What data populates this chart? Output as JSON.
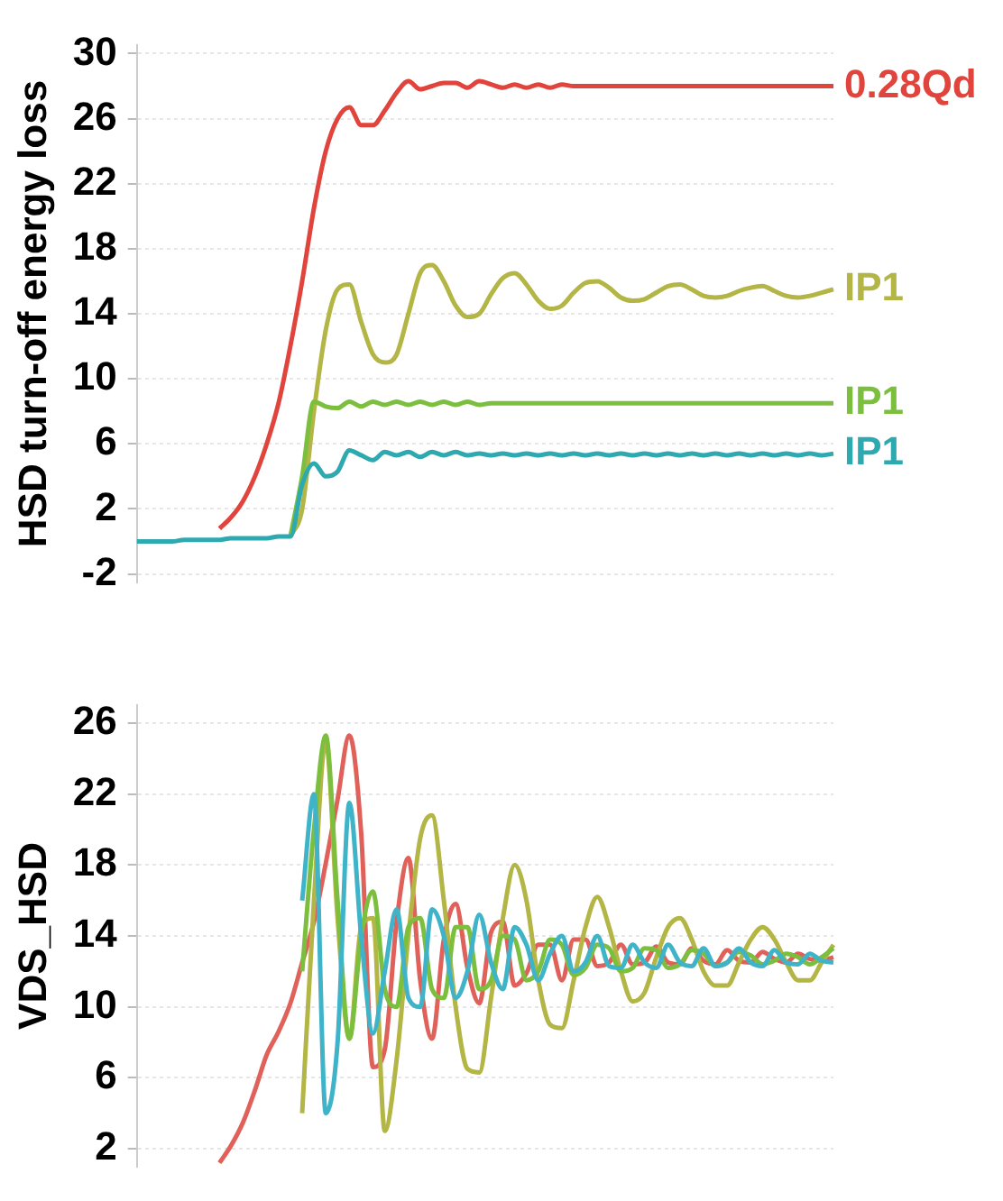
{
  "chart_data": [
    {
      "type": "line",
      "ylabel": "HSD turn-off energy loss",
      "categories": [
        null,
        null,
        null,
        null,
        null,
        null,
        null,
        null,
        null,
        null,
        null,
        null,
        null,
        null,
        null,
        null,
        null,
        null,
        null,
        null,
        null,
        null,
        null,
        null,
        null,
        null,
        null,
        null,
        null,
        null,
        null,
        null,
        null,
        null,
        null,
        null,
        null,
        null,
        null,
        null,
        null,
        null,
        null,
        null,
        null,
        null,
        null,
        null,
        null,
        null,
        null,
        null,
        null,
        null,
        null,
        null,
        null,
        null,
        null,
        null
      ],
      "ylim": [
        -2.5,
        30.5
      ],
      "yticks": [
        -2,
        2,
        6,
        10,
        14,
        18,
        22,
        26,
        30
      ],
      "grid": "y",
      "tick_labels": "y",
      "marker": "none",
      "series": [
        {
          "name": "0.28Qd",
          "color": "#e0443c",
          "values": [
            null,
            null,
            null,
            null,
            null,
            null,
            null,
            0.8,
            1.5,
            2.5,
            4,
            6,
            8.5,
            12,
            16,
            20.5,
            24,
            26,
            26.7,
            25.6,
            25.6,
            26.5,
            27.6,
            28.3,
            27.8,
            28,
            28.2,
            28.2,
            27.9,
            28.3,
            28.1,
            27.9,
            28.1,
            27.9,
            28.1,
            27.9,
            28.1,
            28,
            28,
            28,
            28,
            28,
            28,
            28,
            28,
            28,
            28,
            28,
            28,
            28,
            28,
            28,
            28,
            28,
            28,
            28,
            28,
            28,
            28,
            28
          ]
        },
        {
          "name": "IP1",
          "color": "#b3b545",
          "values": [
            null,
            null,
            null,
            null,
            null,
            null,
            null,
            null,
            null,
            null,
            null,
            null,
            null,
            0.3,
            2,
            8,
            13,
            15.5,
            15.8,
            13.5,
            11.5,
            11,
            11.5,
            14,
            16.5,
            17,
            16,
            14.5,
            13.8,
            14,
            15.2,
            16.2,
            16.5,
            15.8,
            14.8,
            14.3,
            14.5,
            15.3,
            15.9,
            16,
            15.6,
            15,
            14.8,
            14.9,
            15.3,
            15.7,
            15.8,
            15.5,
            15.1,
            15,
            15.1,
            15.4,
            15.6,
            15.7,
            15.4,
            15.1,
            15,
            15.1,
            15.3,
            15.5
          ]
        },
        {
          "name": "IP1",
          "color": "#7cbf3e",
          "values": [
            null,
            null,
            null,
            null,
            null,
            null,
            null,
            null,
            null,
            null,
            null,
            null,
            null,
            0.3,
            4,
            8.6,
            8.3,
            8.2,
            8.6,
            8.3,
            8.6,
            8.4,
            8.6,
            8.4,
            8.6,
            8.4,
            8.6,
            8.4,
            8.6,
            8.4,
            8.5,
            8.5,
            8.5,
            8.5,
            8.5,
            8.5,
            8.5,
            8.5,
            8.5,
            8.5,
            8.5,
            8.5,
            8.5,
            8.5,
            8.5,
            8.5,
            8.5,
            8.5,
            8.5,
            8.5,
            8.5,
            8.5,
            8.5,
            8.5,
            8.5,
            8.5,
            8.5,
            8.5,
            8.5,
            8.5
          ]
        },
        {
          "name": "IP1",
          "color": "#2fa9b0",
          "values": [
            0,
            0,
            0,
            0,
            0.1,
            0.1,
            0.1,
            0.1,
            0.2,
            0.2,
            0.2,
            0.2,
            0.3,
            0.3,
            3.5,
            4.8,
            4,
            4.3,
            5.6,
            5.3,
            5,
            5.5,
            5.3,
            5.5,
            5.2,
            5.5,
            5.3,
            5.5,
            5.3,
            5.4,
            5.3,
            5.4,
            5.3,
            5.4,
            5.3,
            5.4,
            5.3,
            5.4,
            5.3,
            5.4,
            5.3,
            5.4,
            5.3,
            5.4,
            5.3,
            5.4,
            5.3,
            5.4,
            5.3,
            5.4,
            5.3,
            5.4,
            5.3,
            5.4,
            5.3,
            5.4,
            5.3,
            5.4,
            5.3,
            5.4
          ]
        }
      ]
    },
    {
      "type": "line",
      "ylabel": "VDS_HSD",
      "categories": [
        null,
        null,
        null,
        null,
        null,
        null,
        null,
        null,
        null,
        null,
        null,
        null,
        null,
        null,
        null,
        null,
        null,
        null,
        null,
        null,
        null,
        null,
        null,
        null,
        null,
        null,
        null,
        null,
        null,
        null,
        null,
        null,
        null,
        null,
        null,
        null,
        null,
        null,
        null,
        null,
        null,
        null,
        null,
        null,
        null,
        null,
        null,
        null,
        null,
        null,
        null,
        null,
        null,
        null,
        null,
        null,
        null,
        null,
        null,
        null
      ],
      "ylim": [
        1,
        27
      ],
      "yticks": [
        2,
        6,
        10,
        14,
        18,
        22,
        26
      ],
      "grid": "y",
      "tick_labels": "y",
      "marker": "none",
      "series": [
        {
          "color": "#e0605a",
          "values": [
            null,
            null,
            null,
            null,
            null,
            null,
            null,
            1.2,
            2.2,
            3.5,
            5.3,
            7.3,
            8.6,
            10.2,
            12.5,
            14.8,
            18.1,
            21.7,
            25.3,
            19.8,
            6.6,
            7.6,
            14.8,
            18.4,
            11.5,
            8.2,
            13.8,
            15.8,
            12.2,
            10.2,
            14.2,
            14.8,
            11.2,
            11.9,
            13.5,
            13.5,
            11.5,
            13.8,
            13.8,
            12.3,
            12.5,
            13.5,
            12.4,
            12.5,
            13.4,
            12.5,
            12.4,
            13.3,
            12.6,
            12.4,
            13.2,
            12.6,
            12.5,
            13.1,
            12.7,
            12.5,
            13,
            12.7,
            12.6,
            12.8
          ]
        },
        {
          "color": "#b3b545",
          "values": [
            null,
            null,
            null,
            null,
            null,
            null,
            null,
            null,
            null,
            null,
            null,
            null,
            null,
            null,
            4,
            16,
            25,
            15,
            8.2,
            14.5,
            15,
            3,
            7,
            14,
            19.5,
            20.8,
            16,
            10,
            6.5,
            6.3,
            10.5,
            15,
            18,
            16,
            11.5,
            9,
            8.8,
            11.5,
            14.5,
            16.2,
            14.5,
            12,
            10.3,
            10.8,
            12.8,
            14.5,
            15,
            13.8,
            12,
            11.2,
            11.2,
            12.5,
            13.8,
            14.5,
            13.8,
            12.5,
            11.5,
            11.5,
            12.5,
            13.5
          ]
        },
        {
          "color": "#7cbf3e",
          "values": [
            null,
            null,
            null,
            null,
            null,
            null,
            null,
            null,
            null,
            null,
            null,
            null,
            null,
            null,
            12,
            20,
            25.3,
            16,
            8.2,
            14,
            16.5,
            11,
            10,
            14.5,
            15,
            11,
            10.5,
            14.5,
            14.5,
            11,
            11.5,
            14,
            13.8,
            11.5,
            12,
            13.8,
            13.5,
            11.8,
            12.2,
            13.5,
            13.3,
            12,
            12.2,
            13.3,
            13.2,
            12.2,
            12.4,
            13.2,
            13,
            12.3,
            12.5,
            13.1,
            12.9,
            12.4,
            12.6,
            13,
            12.8,
            12.4,
            12.8,
            13.3
          ]
        },
        {
          "color": "#3fb3c8",
          "values": [
            null,
            null,
            null,
            null,
            null,
            null,
            null,
            null,
            null,
            null,
            null,
            null,
            null,
            null,
            16,
            22,
            4,
            8,
            21.5,
            14,
            8.5,
            12,
            15.5,
            10.5,
            10,
            15.5,
            14,
            10.5,
            12,
            15.2,
            12.5,
            11,
            14.5,
            13.5,
            11.5,
            13,
            14,
            12,
            12.5,
            14,
            12.3,
            12.2,
            13.5,
            12.5,
            12.2,
            13.5,
            12.5,
            12.3,
            13.3,
            12.3,
            12.5,
            13.3,
            12.5,
            12.3,
            13.2,
            12.5,
            12.4,
            13,
            12.6,
            12.5
          ]
        }
      ]
    }
  ]
}
